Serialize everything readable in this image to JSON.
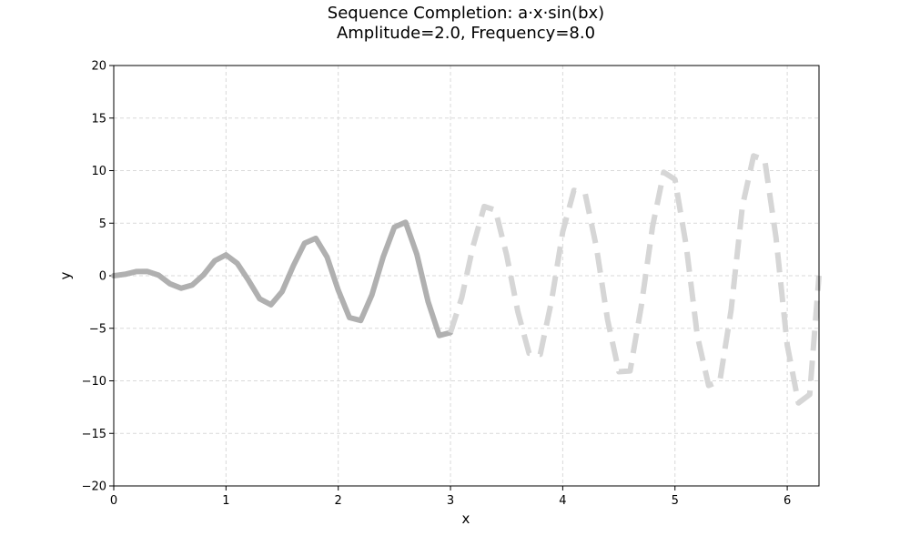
{
  "title_line1": "Sequence Completion: a·x·sin(bx)",
  "title_line2": "Amplitude=2.0, Frequency=8.0",
  "colors": {
    "solid": "#b0b0b0",
    "dashed": "#d6d6d6",
    "grid": "#d9d9d9"
  },
  "chart_data": {
    "type": "line",
    "xlabel": "x",
    "ylabel": "y",
    "xlim": [
      0,
      6.283
    ],
    "ylim": [
      -20,
      20
    ],
    "xticks": [
      0,
      1,
      2,
      3,
      4,
      5,
      6
    ],
    "yticks": [
      -20,
      -15,
      -10,
      -5,
      0,
      5,
      10,
      15,
      20
    ],
    "grid": true,
    "function": {
      "amplitude": 2.0,
      "frequency": 8.0
    },
    "series": [
      {
        "style": "solid",
        "x": [
          0.0,
          0.1,
          0.2,
          0.3,
          0.4,
          0.5,
          0.6,
          0.7,
          0.8,
          0.9,
          1.0,
          1.1,
          1.2,
          1.3,
          1.4,
          1.5,
          1.6,
          1.7,
          1.8,
          1.9,
          2.0,
          2.1,
          2.2,
          2.3,
          2.4,
          2.5,
          2.6,
          2.7,
          2.8,
          2.9,
          3.0
        ],
        "y": [
          0.0,
          0.14,
          0.4,
          0.41,
          0.05,
          -0.76,
          -1.19,
          -0.88,
          0.09,
          1.43,
          1.98,
          1.18,
          -0.42,
          -2.2,
          -2.76,
          -1.51,
          0.96,
          3.1,
          3.56,
          1.78,
          -1.38,
          -3.98,
          -4.26,
          -1.82,
          1.77,
          4.62,
          5.08,
          2.06,
          -2.46,
          -5.69,
          -5.41
        ]
      },
      {
        "style": "dashed",
        "x": [
          3.0,
          3.1,
          3.2,
          3.3,
          3.4,
          3.5,
          3.6,
          3.7,
          3.8,
          3.9,
          4.0,
          4.1,
          4.2,
          4.3,
          4.4,
          4.5,
          4.6,
          4.7,
          4.8,
          4.9,
          5.0,
          5.1,
          5.2,
          5.3,
          5.4,
          5.5,
          5.6,
          5.7,
          5.8,
          5.9,
          6.0,
          6.1,
          6.2,
          6.283
        ],
        "y": [
          -5.41,
          -2.09,
          2.76,
          6.59,
          6.24,
          1.98,
          -3.44,
          -7.38,
          -7.48,
          -2.38,
          4.19,
          8.13,
          7.78,
          2.71,
          -4.21,
          -9.13,
          -9.06,
          -2.89,
          4.68,
          9.84,
          9.17,
          2.85,
          -5.76,
          -10.44,
          -10.0,
          -3.27,
          6.6,
          11.4,
          11.0,
          3.6,
          -6.6,
          -12.1,
          -11.3,
          0.0
        ]
      }
    ]
  }
}
